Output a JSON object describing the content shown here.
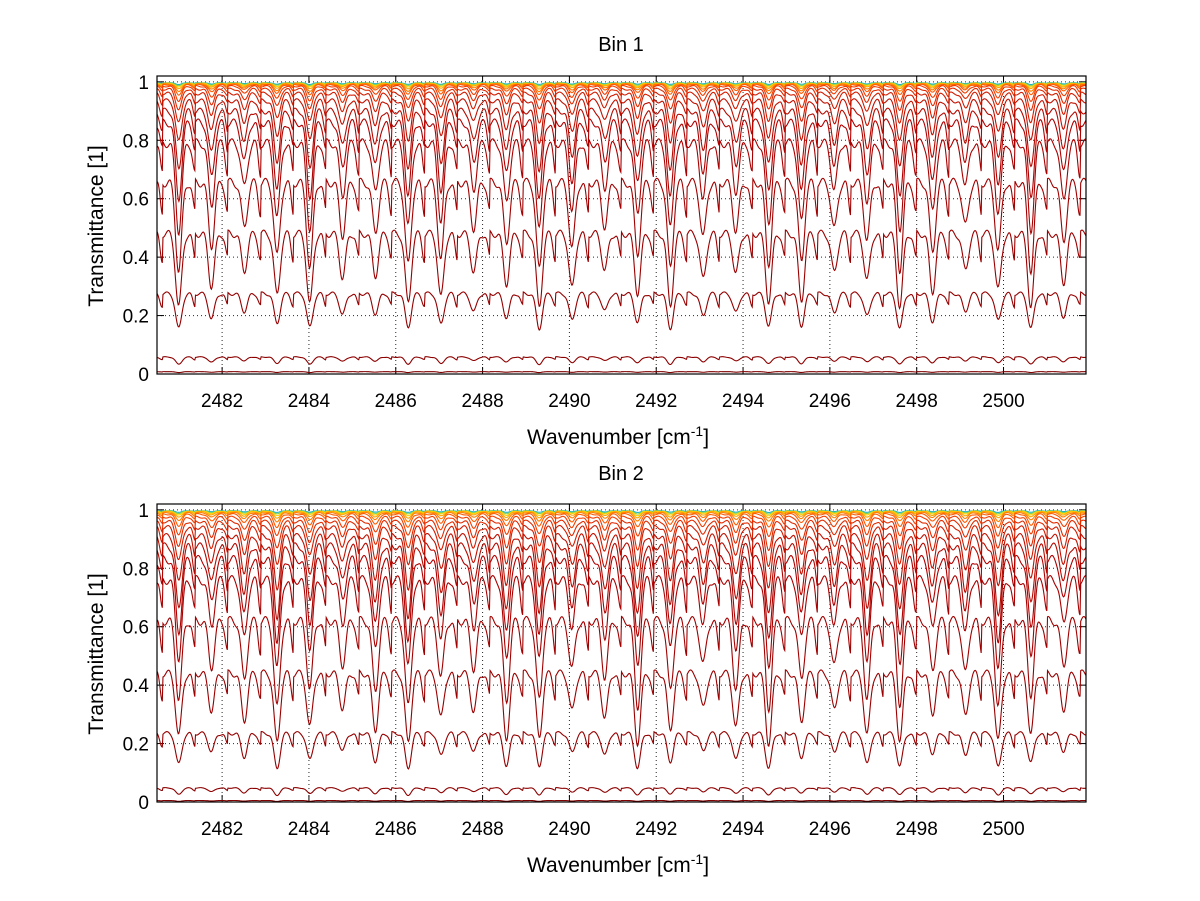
{
  "chart_data": [
    {
      "type": "line",
      "title": "Bin 1",
      "xlabel": "Wavenumber [cm",
      "xlabel_sup": "-1",
      "xlabel_end": "]",
      "ylabel": "Transmittance [1]",
      "xlim": [
        2480.5,
        2501.9
      ],
      "ylim": [
        0,
        1.02
      ],
      "xticks": [
        "2482",
        "2484",
        "2486",
        "2488",
        "2490",
        "2492",
        "2494",
        "2496",
        "2498",
        "2500"
      ],
      "yticks": [
        "0",
        "0.2",
        "0.4",
        "0.6",
        "0.8",
        "1"
      ],
      "grid": true,
      "line_period": 0.755,
      "line_start": 2481.0,
      "series": [
        {
          "base": 0.997,
          "depth": 0.006,
          "color": "#1fb3c9"
        },
        {
          "base": 0.996,
          "depth": 0.009,
          "color": "#7fd15a"
        },
        {
          "base": 0.995,
          "depth": 0.013,
          "color": "#ffd200"
        },
        {
          "base": 0.994,
          "depth": 0.018,
          "color": "#ffa500"
        },
        {
          "base": 0.992,
          "depth": 0.025,
          "color": "#ff7f00"
        },
        {
          "base": 0.99,
          "depth": 0.034,
          "color": "#ff5a00"
        },
        {
          "base": 0.985,
          "depth": 0.05,
          "color": "#f03c00"
        },
        {
          "base": 0.975,
          "depth": 0.07,
          "color": "#e02a00"
        },
        {
          "base": 0.96,
          "depth": 0.1,
          "color": "#d01c00"
        },
        {
          "base": 0.935,
          "depth": 0.14,
          "color": "#c01000"
        },
        {
          "base": 0.9,
          "depth": 0.2,
          "color": "#b40a00"
        },
        {
          "base": 0.86,
          "depth": 0.26,
          "color": "#b00000"
        },
        {
          "base": 0.79,
          "depth": 0.3,
          "color": "#a80000"
        },
        {
          "base": 0.655,
          "depth": 0.3,
          "color": "#a00000"
        },
        {
          "base": 0.48,
          "depth": 0.25,
          "color": "#9a0000"
        },
        {
          "base": 0.275,
          "depth": 0.12,
          "color": "#940000"
        },
        {
          "base": 0.058,
          "depth": 0.025,
          "color": "#8c0000"
        },
        {
          "base": 0.008,
          "depth": 0.003,
          "color": "#800000"
        }
      ]
    },
    {
      "type": "line",
      "title": "Bin 2",
      "xlabel": "Wavenumber [cm",
      "xlabel_sup": "-1",
      "xlabel_end": "]",
      "ylabel": "Transmittance [1]",
      "xlim": [
        2480.5,
        2501.9
      ],
      "ylim": [
        0,
        1.02
      ],
      "xticks": [
        "2482",
        "2484",
        "2486",
        "2488",
        "2490",
        "2492",
        "2494",
        "2496",
        "2498",
        "2500"
      ],
      "yticks": [
        "0",
        "0.2",
        "0.4",
        "0.6",
        "0.8",
        "1"
      ],
      "grid": true,
      "line_period": 0.755,
      "line_start": 2481.0,
      "series": [
        {
          "base": 0.997,
          "depth": 0.006,
          "color": "#1fb3c9"
        },
        {
          "base": 0.996,
          "depth": 0.01,
          "color": "#7fd15a"
        },
        {
          "base": 0.995,
          "depth": 0.015,
          "color": "#ffd200"
        },
        {
          "base": 0.993,
          "depth": 0.021,
          "color": "#ffa500"
        },
        {
          "base": 0.99,
          "depth": 0.03,
          "color": "#ff7f00"
        },
        {
          "base": 0.985,
          "depth": 0.045,
          "color": "#ff5a00"
        },
        {
          "base": 0.975,
          "depth": 0.065,
          "color": "#f03c00"
        },
        {
          "base": 0.96,
          "depth": 0.095,
          "color": "#e02a00"
        },
        {
          "base": 0.94,
          "depth": 0.13,
          "color": "#d01c00"
        },
        {
          "base": 0.91,
          "depth": 0.18,
          "color": "#c01000"
        },
        {
          "base": 0.875,
          "depth": 0.24,
          "color": "#b40a00"
        },
        {
          "base": 0.83,
          "depth": 0.28,
          "color": "#b00000"
        },
        {
          "base": 0.76,
          "depth": 0.3,
          "color": "#a80000"
        },
        {
          "base": 0.62,
          "depth": 0.3,
          "color": "#a00000"
        },
        {
          "base": 0.44,
          "depth": 0.24,
          "color": "#9a0000"
        },
        {
          "base": 0.235,
          "depth": 0.12,
          "color": "#940000"
        },
        {
          "base": 0.048,
          "depth": 0.025,
          "color": "#8c0000"
        },
        {
          "base": 0.005,
          "depth": 0.003,
          "color": "#800000"
        }
      ]
    }
  ]
}
